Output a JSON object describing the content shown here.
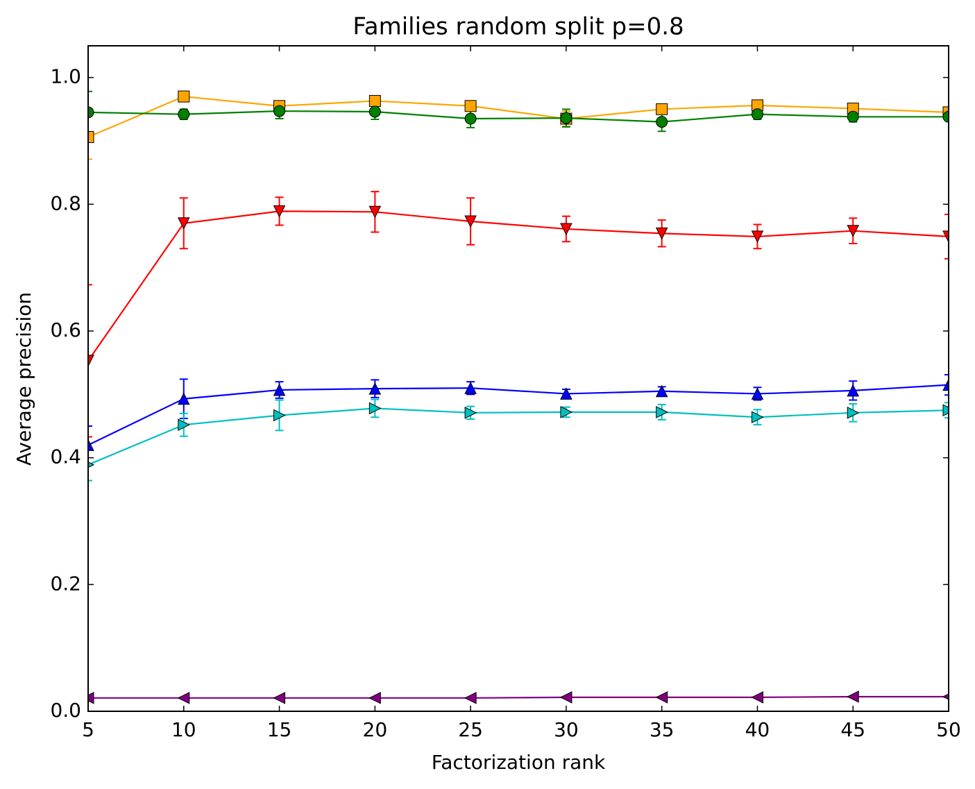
{
  "chart_data": {
    "type": "line",
    "title": "Families random split p=0.8",
    "xlabel": "Factorization rank",
    "ylabel": "Average precision",
    "x": [
      5,
      10,
      15,
      20,
      25,
      30,
      35,
      40,
      45,
      50
    ],
    "xlim": [
      5,
      50
    ],
    "xticks": [
      5,
      10,
      15,
      20,
      25,
      30,
      35,
      40,
      45,
      50
    ],
    "ylim": [
      0,
      1.05
    ],
    "yticks": [
      {
        "value": 0,
        "label": "0.0"
      },
      0.2,
      0.4,
      0.6,
      0.8,
      {
        "value": 1,
        "label": "1.0"
      }
    ],
    "grid": false,
    "series": [
      {
        "color": "#ffa500",
        "marker": "square",
        "values": [
          0.906,
          0.97,
          0.955,
          0.963,
          0.955,
          0.935,
          0.95,
          0.956,
          0.951,
          0.945
        ],
        "errors": [
          0.035,
          0.006,
          0.006,
          0.006,
          0.006,
          0.012,
          0.006,
          0.006,
          0.006,
          0.005
        ]
      },
      {
        "color": "#008000",
        "marker": "circle",
        "values": [
          0.945,
          0.942,
          0.947,
          0.946,
          0.935,
          0.936,
          0.93,
          0.942,
          0.938,
          0.938
        ],
        "errors": [
          0.033,
          0.008,
          0.012,
          0.012,
          0.014,
          0.014,
          0.015,
          0.008,
          0.008,
          0.006
        ]
      },
      {
        "color": "#ff0000",
        "marker": "triangle-down",
        "values": [
          0.553,
          0.77,
          0.789,
          0.788,
          0.773,
          0.761,
          0.754,
          0.749,
          0.758,
          0.749
        ],
        "errors": [
          0.12,
          0.04,
          0.022,
          0.032,
          0.037,
          0.02,
          0.021,
          0.019,
          0.02,
          0.035
        ]
      },
      {
        "color": "#0000ff",
        "marker": "triangle-up",
        "values": [
          0.42,
          0.493,
          0.507,
          0.509,
          0.51,
          0.501,
          0.505,
          0.501,
          0.506,
          0.515
        ],
        "errors": [
          0.03,
          0.031,
          0.013,
          0.014,
          0.01,
          0.007,
          0.007,
          0.01,
          0.015,
          0.016
        ]
      },
      {
        "color": "#00bfbf",
        "marker": "triangle-right",
        "values": [
          0.389,
          0.452,
          0.467,
          0.478,
          0.471,
          0.472,
          0.472,
          0.464,
          0.471,
          0.475
        ],
        "errors": [
          0.025,
          0.018,
          0.024,
          0.014,
          0.01,
          0.008,
          0.012,
          0.012,
          0.014,
          0.012
        ]
      },
      {
        "color": "#800080",
        "marker": "triangle-left",
        "values": [
          0.021,
          0.021,
          0.021,
          0.021,
          0.021,
          0.022,
          0.022,
          0.022,
          0.023,
          0.023
        ],
        "errors": [
          0.001,
          0.001,
          0.001,
          0.001,
          0.001,
          0.001,
          0.001,
          0.001,
          0.001,
          0.001
        ]
      }
    ]
  }
}
